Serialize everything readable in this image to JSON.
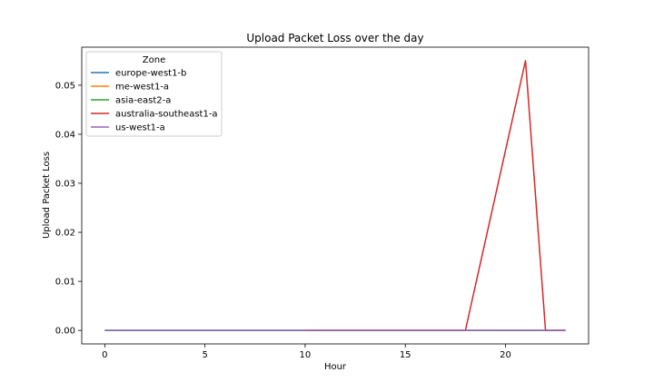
{
  "chart_data": {
    "type": "line",
    "title": "Upload Packet Loss over the day",
    "xlabel": "Hour",
    "ylabel": "Upload Packet Loss",
    "xlim": [
      -1.15,
      24.15
    ],
    "ylim": [
      -0.00275,
      0.05775
    ],
    "xticks": [
      0,
      5,
      10,
      15,
      20
    ],
    "yticks": [
      0.0,
      0.01,
      0.02,
      0.03,
      0.04,
      0.05
    ],
    "ytick_labels": [
      "0.00",
      "0.01",
      "0.02",
      "0.03",
      "0.04",
      "0.05"
    ],
    "grid": false,
    "legend": {
      "title": "Zone",
      "placement": "upper-left"
    },
    "series": [
      {
        "name": "europe-west1-b",
        "color": "#1f77b4",
        "points": [
          [
            0,
            0
          ],
          [
            23,
            0
          ]
        ]
      },
      {
        "name": "me-west1-a",
        "color": "#ff7f0e",
        "points": [
          [
            10,
            0
          ],
          [
            23,
            0
          ]
        ]
      },
      {
        "name": "asia-east2-a",
        "color": "#2ca02c",
        "points": [
          [
            0,
            0
          ],
          [
            23,
            0
          ]
        ]
      },
      {
        "name": "australia-southeast1-a",
        "color": "#d62728",
        "points": [
          [
            10,
            0
          ],
          [
            18,
            0
          ],
          [
            21,
            0.055
          ],
          [
            22,
            0
          ],
          [
            23,
            0
          ]
        ]
      },
      {
        "name": "us-west1-a",
        "color": "#9467bd",
        "points": [
          [
            0,
            0
          ],
          [
            23,
            0
          ]
        ]
      }
    ]
  }
}
